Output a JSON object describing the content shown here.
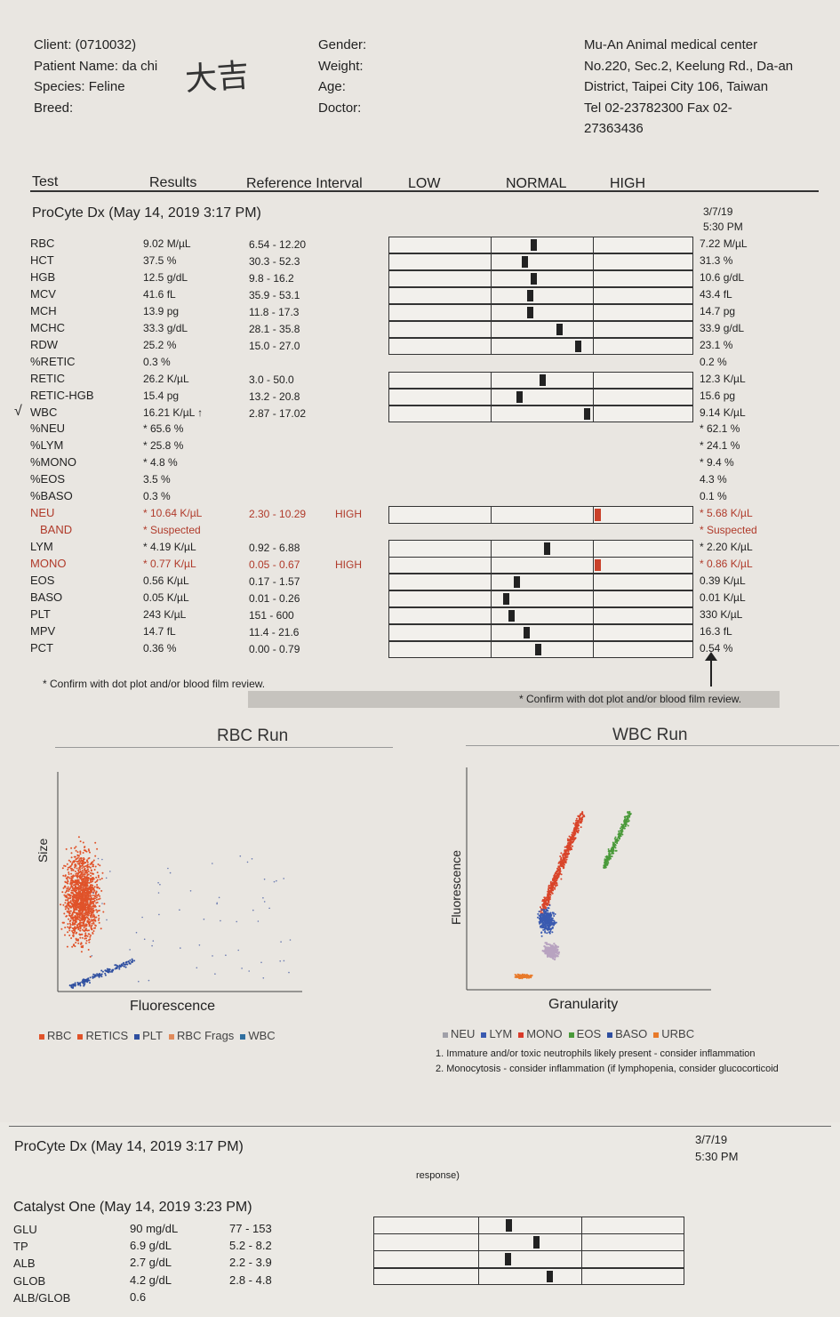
{
  "header": {
    "client": "Client:  (0710032)",
    "patient": "Patient Name: da chi",
    "patient_handwritten": "大吉",
    "species": "Species: Feline",
    "breed": "Breed:",
    "gender": "Gender:",
    "weight": "Weight:",
    "age": "Age:",
    "doctor": "Doctor:",
    "clinic": [
      "Mu-An Animal medical center",
      "No.220, Sec.2, Keelung Rd., Da-an",
      "District, Taipei City 106, Taiwan",
      "Tel 02-23782300  Fax 02-",
      "27363436"
    ]
  },
  "columns": {
    "test": "Test",
    "results": "Results",
    "reference": "Reference Interval",
    "low": "LOW",
    "normal": "NORMAL",
    "high": "HIGH"
  },
  "hematology": {
    "instrument": "ProCyte Dx (May 14, 2019 3:17 PM)",
    "prev_date": "3/7/19",
    "prev_time": "5:30 PM",
    "rows": [
      {
        "test": "RBC",
        "result": "9.02 M/µL",
        "ref": "6.54 - 12.20",
        "flag": "",
        "prev": "7.22 M/µL",
        "level": 0.42,
        "red": false
      },
      {
        "test": "HCT",
        "result": "37.5 %",
        "ref": "30.3 - 52.3",
        "flag": "",
        "prev": "31.3 %",
        "level": 0.33,
        "red": false
      },
      {
        "test": "HGB",
        "result": "12.5 g/dL",
        "ref": "9.8 - 16.2",
        "flag": "",
        "prev": "10.6 g/dL",
        "level": 0.42,
        "red": false
      },
      {
        "test": "MCV",
        "result": "41.6 fL",
        "ref": "35.9 - 53.1",
        "flag": "",
        "prev": "43.4 fL",
        "level": 0.38,
        "red": false
      },
      {
        "test": "MCH",
        "result": "13.9 pg",
        "ref": "11.8 - 17.3",
        "flag": "",
        "prev": "14.7 pg",
        "level": 0.38,
        "red": false
      },
      {
        "test": "MCHC",
        "result": "33.3 g/dL",
        "ref": "28.1 - 35.8",
        "flag": "",
        "prev": "33.9 g/dL",
        "level": 0.67,
        "red": false
      },
      {
        "test": "RDW",
        "result": "25.2 %",
        "ref": "15.0 - 27.0",
        "flag": "",
        "prev": "23.1 %",
        "level": 0.85,
        "red": false
      },
      {
        "test": "%RETIC",
        "result": "0.3 %",
        "ref": "",
        "flag": "",
        "prev": "0.2 %",
        "level": null,
        "red": false
      },
      {
        "test": "RETIC",
        "result": "26.2 K/µL",
        "ref": "3.0 - 50.0",
        "flag": "",
        "prev": "12.3 K/µL",
        "level": 0.5,
        "red": false
      },
      {
        "test": "RETIC-HGB",
        "result": "15.4 pg",
        "ref": "13.2 - 20.8",
        "flag": "",
        "prev": "15.6 pg",
        "level": 0.28,
        "red": false
      },
      {
        "test": "WBC",
        "result": "16.21 K/µL ↑",
        "ref": "2.87 - 17.02",
        "flag": "",
        "prev": "9.14 K/µL",
        "level": 0.94,
        "red": false,
        "check": "√"
      },
      {
        "test": "%NEU",
        "result": "* 65.6 %",
        "ref": "",
        "flag": "",
        "prev": "* 62.1 %",
        "level": null,
        "red": false
      },
      {
        "test": "%LYM",
        "result": "* 25.8 %",
        "ref": "",
        "flag": "",
        "prev": "* 24.1 %",
        "level": null,
        "red": false
      },
      {
        "test": "%MONO",
        "result": "* 4.8 %",
        "ref": "",
        "flag": "",
        "prev": "* 9.4 %",
        "level": null,
        "red": false
      },
      {
        "test": "%EOS",
        "result": "3.5 %",
        "ref": "",
        "flag": "",
        "prev": "4.3 %",
        "level": null,
        "red": false
      },
      {
        "test": "%BASO",
        "result": "0.3 %",
        "ref": "",
        "flag": "",
        "prev": "0.1 %",
        "level": null,
        "red": false
      },
      {
        "test": "NEU",
        "result": "* 10.64 K/µL",
        "ref": "2.30 - 10.29",
        "flag": "HIGH",
        "prev": "* 5.68 K/µL",
        "level": 1.05,
        "red": true
      },
      {
        "test": "BAND",
        "result": "* Suspected",
        "ref": "",
        "flag": "",
        "prev": "* Suspected",
        "level": null,
        "red": true
      },
      {
        "test": "LYM",
        "result": "* 4.19 K/µL",
        "ref": "0.92 - 6.88",
        "flag": "",
        "prev": "* 2.20 K/µL",
        "level": 0.55,
        "red": false
      },
      {
        "test": "MONO",
        "result": "* 0.77 K/µL",
        "ref": "0.05 - 0.67",
        "flag": "HIGH",
        "prev": "* 0.86 K/µL",
        "level": 1.05,
        "red": true
      },
      {
        "test": "EOS",
        "result": "0.56 K/µL",
        "ref": "0.17 - 1.57",
        "flag": "",
        "prev": "0.39 K/µL",
        "level": 0.25,
        "red": false
      },
      {
        "test": "BASO",
        "result": "0.05 K/µL",
        "ref": "0.01 - 0.26",
        "flag": "",
        "prev": "0.01 K/µL",
        "level": 0.15,
        "red": false
      },
      {
        "test": "PLT",
        "result": "243 K/µL",
        "ref": "151 - 600",
        "flag": "",
        "prev": "330 K/µL",
        "level": 0.2,
        "red": false
      },
      {
        "test": "MPV",
        "result": "14.7 fL",
        "ref": "11.4 - 21.6",
        "flag": "",
        "prev": "16.3 fL",
        "level": 0.35,
        "red": false
      },
      {
        "test": "PCT",
        "result": "0.36 %",
        "ref": "0.00 - 0.79",
        "flag": "",
        "prev": "0.54 %",
        "level": 0.46,
        "red": false
      }
    ],
    "note_left": "* Confirm with dot plot and/or blood film review.",
    "note_right": "* Confirm with dot plot and/or blood film review."
  },
  "rbc_run": {
    "title": "RBC Run",
    "xlabel": "Fluorescence",
    "ylabel": "Size",
    "legend": [
      {
        "label": "RBC",
        "color": "#e0532a"
      },
      {
        "label": "RETICS",
        "color": "#e0532a"
      },
      {
        "label": "PLT",
        "color": "#2f4fa0"
      },
      {
        "label": "RBC Frags",
        "color": "#e08a5a"
      },
      {
        "label": "WBC",
        "color": "#2f6fa0"
      }
    ]
  },
  "wbc_run": {
    "title": "WBC Run",
    "xlabel": "Granularity",
    "ylabel": "Fluorescence",
    "legend": [
      {
        "label": "NEU",
        "color": "#a0a0a8"
      },
      {
        "label": "LYM",
        "color": "#3a5ab0"
      },
      {
        "label": "MONO",
        "color": "#d93a2a"
      },
      {
        "label": "EOS",
        "color": "#4a9a3a"
      },
      {
        "label": "BASO",
        "color": "#2f4fa0"
      },
      {
        "label": "URBC",
        "color": "#e87a2a"
      }
    ]
  },
  "footnotes": [
    "1. Immature and/or toxic neutrophils likely present - consider inflammation",
    "2. Monocytosis - consider inflammation (if lymphopenia, consider glucocorticoid"
  ],
  "page2": {
    "instrument": "ProCyte Dx (May 14, 2019 3:17 PM)",
    "prev_date": "3/7/19",
    "prev_time": "5:30 PM",
    "response": "response)",
    "chem_title": "Catalyst One (May 14, 2019 3:23 PM)",
    "rows": [
      {
        "test": "GLU",
        "result": "90 mg/dL",
        "ref": "77 - 153",
        "level": 0.3
      },
      {
        "test": "TP",
        "result": "6.9 g/dL",
        "ref": "5.2 - 8.2",
        "level": 0.57
      },
      {
        "test": "ALB",
        "result": "2.7 g/dL",
        "ref": "2.2 - 3.9",
        "level": 0.29
      },
      {
        "test": "GLOB",
        "result": "4.2 g/dL",
        "ref": "2.8 - 4.8",
        "level": 0.7
      },
      {
        "test": "ALB/GLOB",
        "result": "0.6",
        "ref": "",
        "level": null
      }
    ]
  }
}
